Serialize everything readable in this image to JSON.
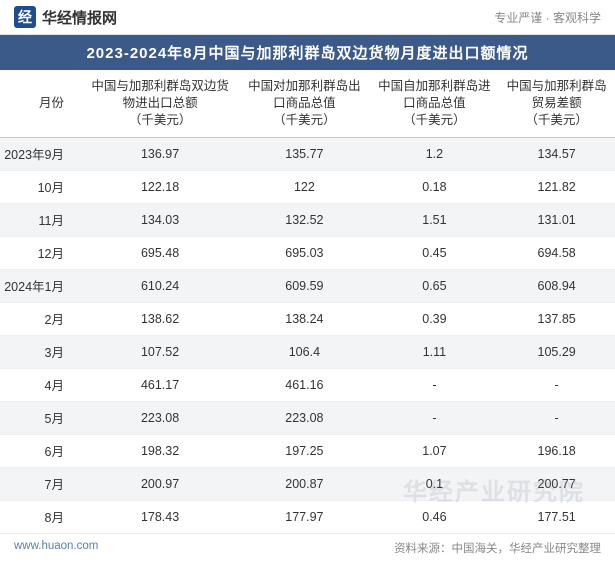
{
  "header": {
    "site_name": "华经情报网",
    "tagline": "专业严谨  ·  客观科学"
  },
  "table": {
    "type": "table",
    "title": "2023-2024年8月中国与加那利群岛双边货物月度进出口额情况",
    "columns": [
      "月份",
      "中国与加那利群岛双边货物进出口总额\n（千美元）",
      "中国对加那利群岛出口商品总值\n（千美元）",
      "中国自加那利群岛进口商品总值\n（千美元）",
      "中国与加那利群岛贸易差额\n（千美元）"
    ],
    "col_widths": [
      "82px",
      "auto",
      "auto",
      "auto",
      "auto"
    ],
    "rows": [
      [
        "2023年9月",
        "136.97",
        "135.77",
        "1.2",
        "134.57"
      ],
      [
        "10月",
        "122.18",
        "122",
        "0.18",
        "121.82"
      ],
      [
        "11月",
        "134.03",
        "132.52",
        "1.51",
        "131.01"
      ],
      [
        "12月",
        "695.48",
        "695.03",
        "0.45",
        "694.58"
      ],
      [
        "2024年1月",
        "610.24",
        "609.59",
        "0.65",
        "608.94"
      ],
      [
        "2月",
        "138.62",
        "138.24",
        "0.39",
        "137.85"
      ],
      [
        "3月",
        "107.52",
        "106.4",
        "1.11",
        "105.29"
      ],
      [
        "4月",
        "461.17",
        "461.16",
        "-",
        "-"
      ],
      [
        "5月",
        "223.08",
        "223.08",
        "-",
        "-"
      ],
      [
        "6月",
        "198.32",
        "197.25",
        "1.07",
        "196.18"
      ],
      [
        "7月",
        "200.97",
        "200.87",
        "0.1",
        "200.77"
      ],
      [
        "8月",
        "178.43",
        "177.97",
        "0.46",
        "177.51"
      ]
    ],
    "styling": {
      "title_bg": "#3b5a8a",
      "title_color": "#ffffff",
      "title_fontsize": 15,
      "header_border": "#c0c6cc",
      "row_odd_bg": "#f2f4f6",
      "row_even_bg": "#ffffff",
      "row_border": "#eceef0",
      "text_color": "#333333",
      "fontsize": 12.5
    }
  },
  "footer": {
    "url": "www.huaon.com",
    "source": "资料来源：中国海关，华经产业研究整理"
  },
  "watermark": "华经产业研究院"
}
